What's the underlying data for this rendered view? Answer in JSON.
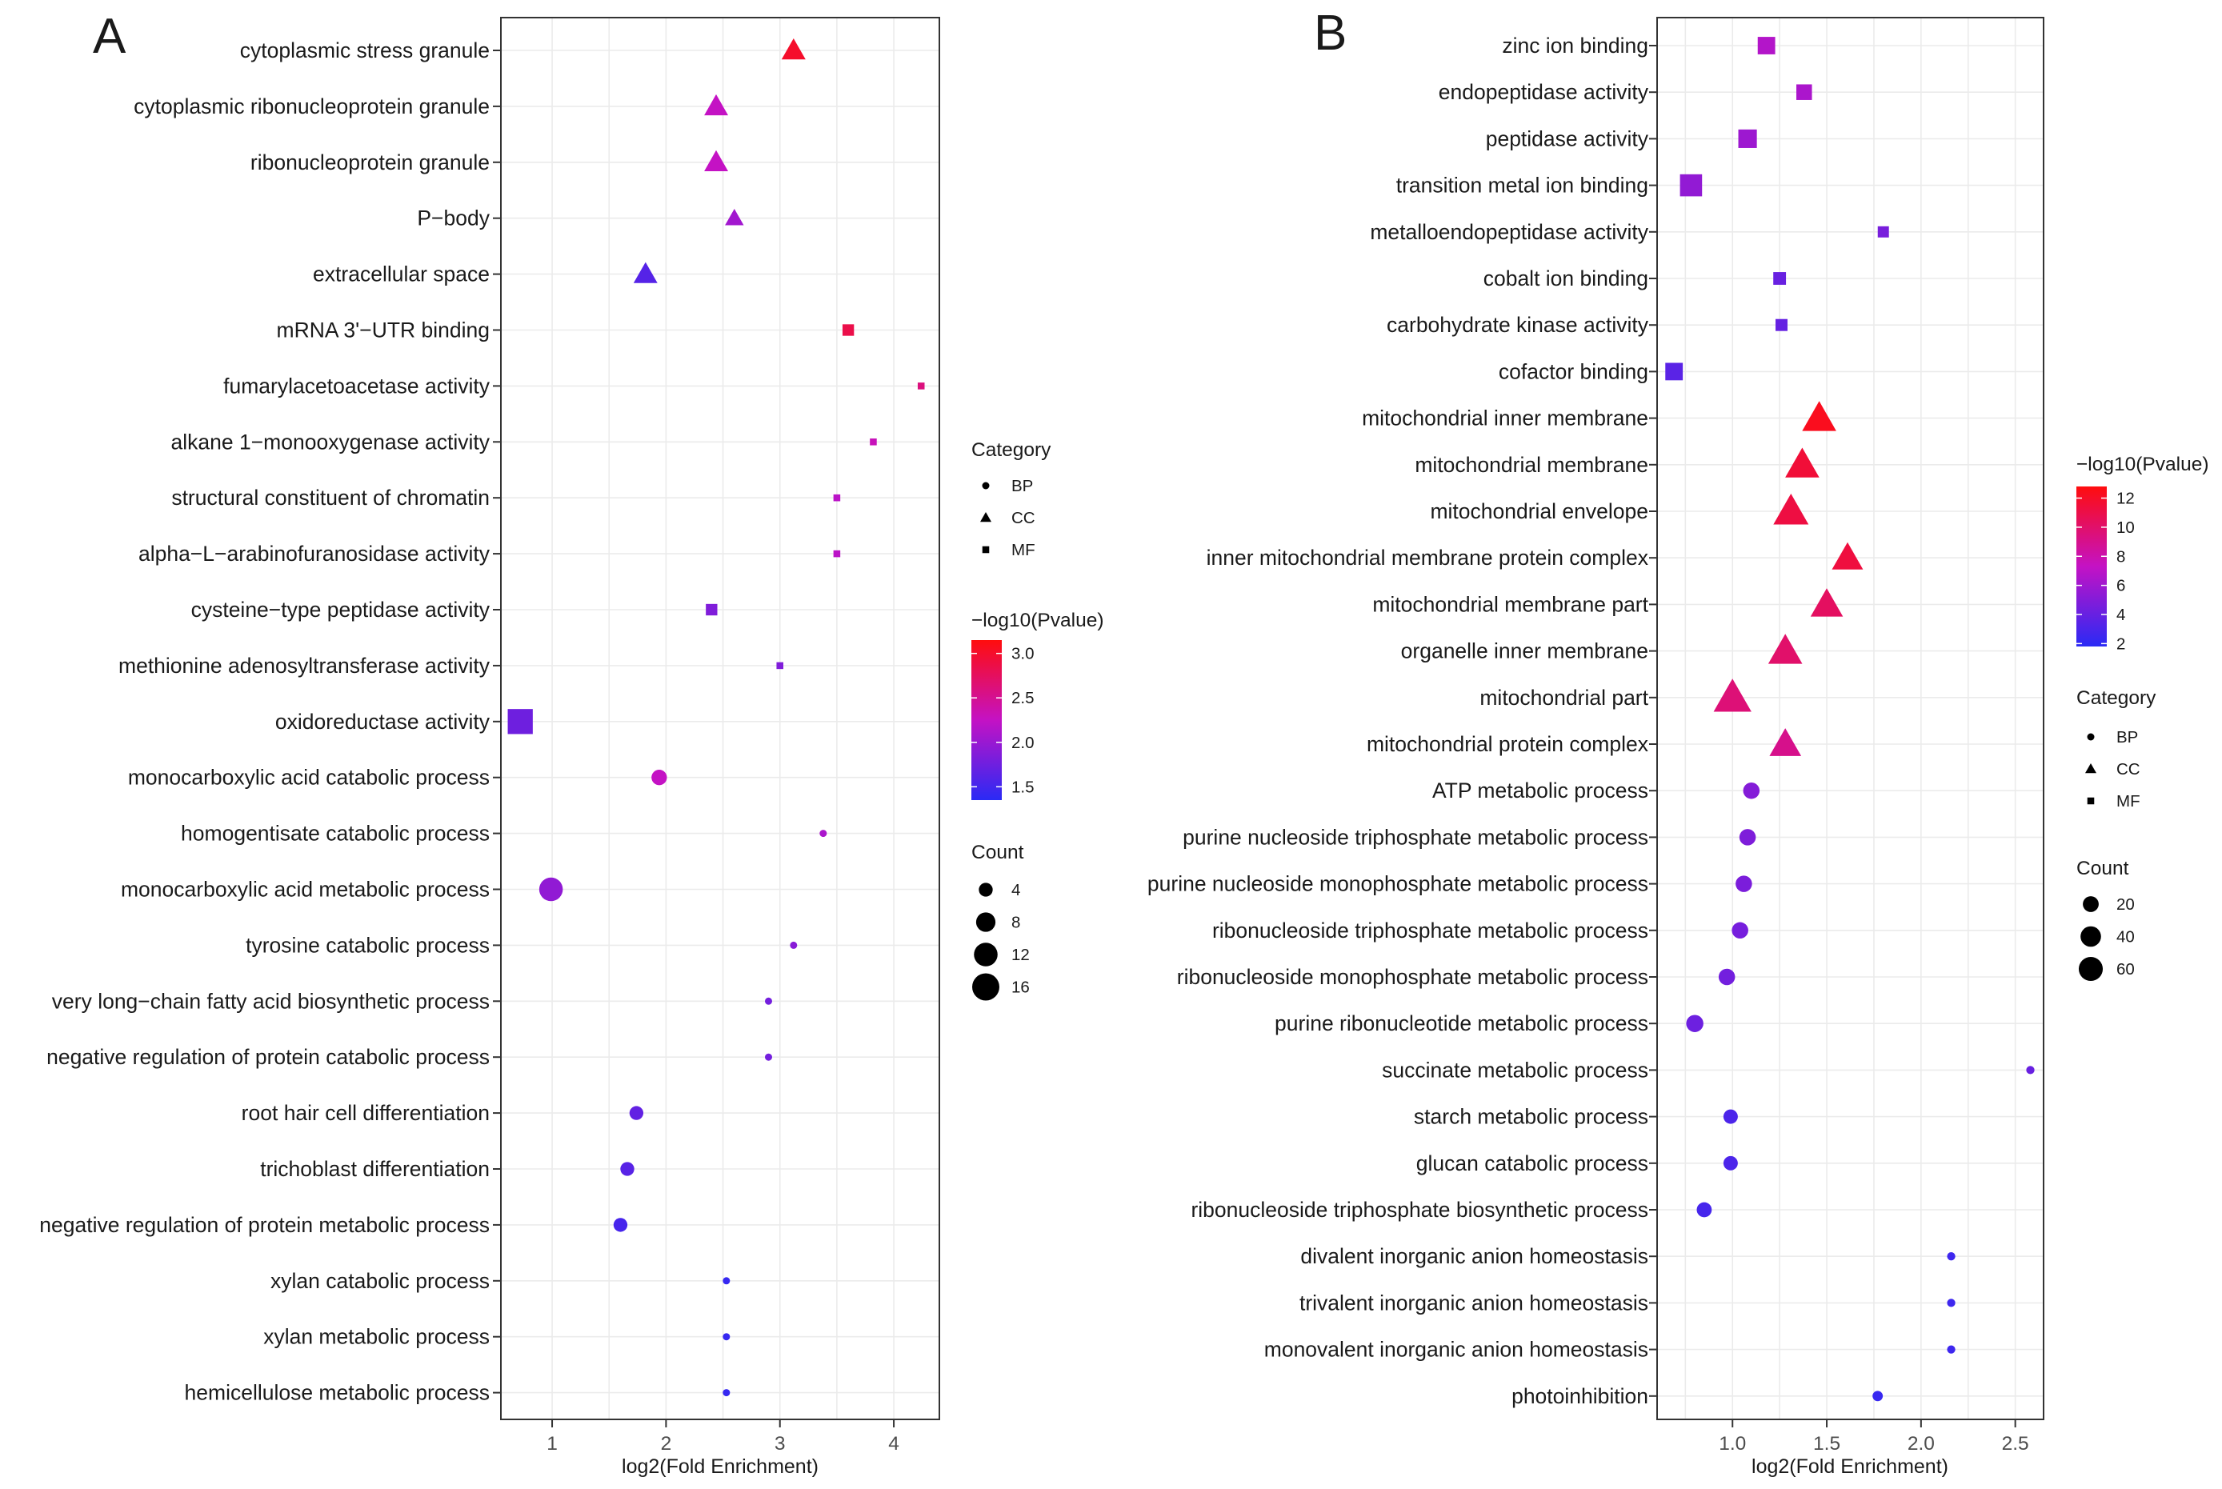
{
  "chart_data": [
    {
      "type": "scatter",
      "panel_label": "A",
      "xlabel": "log2(Fold Enrichment)",
      "ylabel": "",
      "xlim": [
        0.55,
        4.4
      ],
      "xticks": [
        1,
        2,
        3,
        4
      ],
      "xtick_labels": [
        "1",
        "2",
        "3",
        "4"
      ],
      "grid": true,
      "legend": {
        "position": "right",
        "category_title": "Category",
        "categories": [
          "BP",
          "CC",
          "MF"
        ],
        "color_title": "−log10(Pvalue)",
        "color_range": [
          1.35,
          3.15
        ],
        "color_ticks": [
          1.5,
          2.0,
          2.5,
          3.0
        ],
        "color_tick_labels": [
          "1.5",
          "2.0",
          "2.5",
          "3.0"
        ],
        "size_title": "Count",
        "size_range": [
          1,
          16
        ],
        "size_breaks": [
          4,
          8,
          12,
          16
        ],
        "size_labels": [
          "4",
          "8",
          "12",
          "16"
        ]
      },
      "points": [
        {
          "term": "cytoplasmic stress granule",
          "category": "CC",
          "x": 3.12,
          "count": 5,
          "neglog10p": 3.0
        },
        {
          "term": "cytoplasmic ribonucleoprotein granule",
          "category": "CC",
          "x": 2.44,
          "count": 5,
          "neglog10p": 2.25
        },
        {
          "term": "ribonucleoprotein granule",
          "category": "CC",
          "x": 2.44,
          "count": 5,
          "neglog10p": 2.25
        },
        {
          "term": "P−body",
          "category": "CC",
          "x": 2.6,
          "count": 3,
          "neglog10p": 2.05
        },
        {
          "term": "extracellular space",
          "category": "CC",
          "x": 1.82,
          "count": 5,
          "neglog10p": 1.6
        },
        {
          "term": "mRNA 3'−UTR binding",
          "category": "MF",
          "x": 3.6,
          "count": 3,
          "neglog10p": 2.85
        },
        {
          "term": "fumarylacetoacetase activity",
          "category": "MF",
          "x": 4.24,
          "count": 1,
          "neglog10p": 2.6
        },
        {
          "term": "alkane 1−monooxygenase activity",
          "category": "MF",
          "x": 3.82,
          "count": 1,
          "neglog10p": 2.3
        },
        {
          "term": "structural constituent of chromatin",
          "category": "MF",
          "x": 3.5,
          "count": 1,
          "neglog10p": 2.2
        },
        {
          "term": "alpha−L−arabinofuranosidase activity",
          "category": "MF",
          "x": 3.5,
          "count": 1,
          "neglog10p": 2.2
        },
        {
          "term": "cysteine−type peptidase activity",
          "category": "MF",
          "x": 2.4,
          "count": 3,
          "neglog10p": 1.85
        },
        {
          "term": "methionine adenosyltransferase activity",
          "category": "MF",
          "x": 3.0,
          "count": 1,
          "neglog10p": 1.85
        },
        {
          "term": "oxidoreductase activity",
          "category": "MF",
          "x": 0.72,
          "count": 15,
          "neglog10p": 1.75
        },
        {
          "term": "monocarboxylic acid catabolic process",
          "category": "BP",
          "x": 1.94,
          "count": 5,
          "neglog10p": 2.25
        },
        {
          "term": "homogentisate catabolic process",
          "category": "BP",
          "x": 3.38,
          "count": 1,
          "neglog10p": 2.1
        },
        {
          "term": "monocarboxylic acid metabolic process",
          "category": "BP",
          "x": 0.99,
          "count": 12,
          "neglog10p": 1.95
        },
        {
          "term": "tyrosine catabolic process",
          "category": "BP",
          "x": 3.12,
          "count": 1,
          "neglog10p": 1.9
        },
        {
          "term": "very long−chain fatty acid biosynthetic process",
          "category": "BP",
          "x": 2.9,
          "count": 1,
          "neglog10p": 1.78
        },
        {
          "term": "negative regulation of protein catabolic process",
          "category": "BP",
          "x": 2.9,
          "count": 1,
          "neglog10p": 1.78
        },
        {
          "term": "root hair cell differentiation",
          "category": "BP",
          "x": 1.74,
          "count": 4,
          "neglog10p": 1.68
        },
        {
          "term": "trichoblast differentiation",
          "category": "BP",
          "x": 1.66,
          "count": 4,
          "neglog10p": 1.62
        },
        {
          "term": "negative regulation of protein metabolic process",
          "category": "BP",
          "x": 1.6,
          "count": 4,
          "neglog10p": 1.52
        },
        {
          "term": "xylan catabolic process",
          "category": "BP",
          "x": 2.53,
          "count": 1,
          "neglog10p": 1.42
        },
        {
          "term": "xylan metabolic process",
          "category": "BP",
          "x": 2.53,
          "count": 1,
          "neglog10p": 1.42
        },
        {
          "term": "hemicellulose metabolic process",
          "category": "BP",
          "x": 2.53,
          "count": 1,
          "neglog10p": 1.42
        }
      ]
    },
    {
      "type": "scatter",
      "panel_label": "B",
      "xlabel": "log2(Fold Enrichment)",
      "ylabel": "",
      "xlim": [
        0.6,
        2.65
      ],
      "xticks": [
        1.0,
        1.5,
        2.0,
        2.5
      ],
      "xtick_labels": [
        "1.0",
        "1.5",
        "2.0",
        "2.5"
      ],
      "grid": true,
      "legend": {
        "position": "right",
        "category_title": "Category",
        "categories": [
          "BP",
          "CC",
          "MF"
        ],
        "color_title": "−log10(Pvalue)",
        "color_range": [
          1.8,
          12.8
        ],
        "color_ticks": [
          2,
          4,
          6,
          8,
          10,
          12
        ],
        "color_tick_labels": [
          "2",
          "4",
          "6",
          "8",
          "10",
          "12"
        ],
        "size_title": "Count",
        "size_range": [
          1,
          70
        ],
        "size_breaks": [
          20,
          40,
          60
        ],
        "size_labels": [
          "20",
          "40",
          "60"
        ]
      },
      "points": [
        {
          "term": "zinc ion binding",
          "category": "MF",
          "x": 1.18,
          "count": 30,
          "neglog10p": 6.7
        },
        {
          "term": "endopeptidase activity",
          "category": "MF",
          "x": 1.38,
          "count": 22,
          "neglog10p": 6.4
        },
        {
          "term": "peptidase activity",
          "category": "MF",
          "x": 1.08,
          "count": 35,
          "neglog10p": 5.9
        },
        {
          "term": "transition metal ion binding",
          "category": "MF",
          "x": 0.78,
          "count": 55,
          "neglog10p": 5.5
        },
        {
          "term": "metalloendopeptidase activity",
          "category": "MF",
          "x": 1.8,
          "count": 8,
          "neglog10p": 4.6
        },
        {
          "term": "cobalt ion binding",
          "category": "MF",
          "x": 1.25,
          "count": 12,
          "neglog10p": 4.0
        },
        {
          "term": "carbohydrate kinase activity",
          "category": "MF",
          "x": 1.26,
          "count": 10,
          "neglog10p": 3.9
        },
        {
          "term": "cofactor binding",
          "category": "MF",
          "x": 0.69,
          "count": 30,
          "neglog10p": 3.5
        },
        {
          "term": "mitochondrial inner membrane",
          "category": "CC",
          "x": 1.46,
          "count": 48,
          "neglog10p": 12.3
        },
        {
          "term": "mitochondrial membrane",
          "category": "CC",
          "x": 1.37,
          "count": 48,
          "neglog10p": 11.5
        },
        {
          "term": "mitochondrial envelope",
          "category": "CC",
          "x": 1.31,
          "count": 52,
          "neglog10p": 11.2
        },
        {
          "term": "inner mitochondrial membrane protein complex",
          "category": "CC",
          "x": 1.61,
          "count": 38,
          "neglog10p": 11.3
        },
        {
          "term": "mitochondrial membrane part",
          "category": "CC",
          "x": 1.5,
          "count": 42,
          "neglog10p": 10.3
        },
        {
          "term": "organelle inner membrane",
          "category": "CC",
          "x": 1.28,
          "count": 48,
          "neglog10p": 10.0
        },
        {
          "term": "mitochondrial part",
          "category": "CC",
          "x": 1.0,
          "count": 62,
          "neglog10p": 9.6
        },
        {
          "term": "mitochondrial protein complex",
          "category": "CC",
          "x": 1.28,
          "count": 40,
          "neglog10p": 9.0
        },
        {
          "term": "ATP metabolic process",
          "category": "BP",
          "x": 1.1,
          "count": 22,
          "neglog10p": 5.0
        },
        {
          "term": "purine nucleoside triphosphate metabolic process",
          "category": "BP",
          "x": 1.08,
          "count": 22,
          "neglog10p": 4.8
        },
        {
          "term": "purine nucleoside monophosphate metabolic process",
          "category": "BP",
          "x": 1.06,
          "count": 22,
          "neglog10p": 4.7
        },
        {
          "term": "ribonucleoside triphosphate metabolic process",
          "category": "BP",
          "x": 1.04,
          "count": 22,
          "neglog10p": 4.5
        },
        {
          "term": "ribonucleoside monophosphate metabolic process",
          "category": "BP",
          "x": 0.97,
          "count": 22,
          "neglog10p": 4.4
        },
        {
          "term": "purine ribonucleotide metabolic process",
          "category": "BP",
          "x": 0.8,
          "count": 25,
          "neglog10p": 4.2
        },
        {
          "term": "succinate metabolic process",
          "category": "BP",
          "x": 2.58,
          "count": 2,
          "neglog10p": 4.0
        },
        {
          "term": "starch metabolic process",
          "category": "BP",
          "x": 0.99,
          "count": 15,
          "neglog10p": 3.0
        },
        {
          "term": "glucan catabolic process",
          "category": "BP",
          "x": 0.99,
          "count": 15,
          "neglog10p": 3.0
        },
        {
          "term": "ribonucleoside triphosphate biosynthetic process",
          "category": "BP",
          "x": 0.85,
          "count": 17,
          "neglog10p": 2.8
        },
        {
          "term": "divalent inorganic anion homeostasis",
          "category": "BP",
          "x": 2.16,
          "count": 2,
          "neglog10p": 2.5
        },
        {
          "term": "trivalent inorganic anion homeostasis",
          "category": "BP",
          "x": 2.16,
          "count": 2,
          "neglog10p": 2.5
        },
        {
          "term": "monovalent inorganic anion homeostasis",
          "category": "BP",
          "x": 2.16,
          "count": 2,
          "neglog10p": 2.5
        },
        {
          "term": "photoinhibition",
          "category": "BP",
          "x": 1.77,
          "count": 5,
          "neglog10p": 2.3
        }
      ]
    }
  ]
}
